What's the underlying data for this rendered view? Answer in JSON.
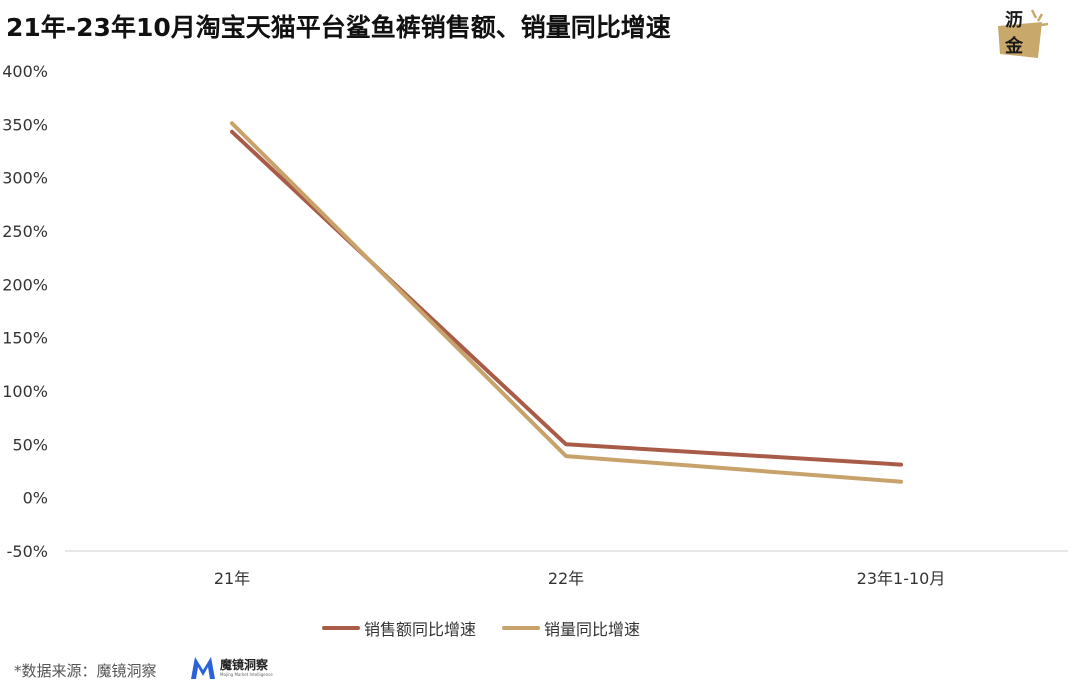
{
  "header": {
    "title": "21年-23年10月淘宝天猫平台鲨鱼裤销售额、销量同比增速"
  },
  "logo": {
    "char_top": "沥",
    "char_bottom": "金",
    "accent_color": "#c8a86b"
  },
  "chart_data": {
    "type": "line",
    "categories": [
      "21年",
      "22年",
      "23年1-10月"
    ],
    "series": [
      {
        "name": "销售额同比增速",
        "values": [
          343,
          50,
          31
        ],
        "color": "#a85c48"
      },
      {
        "name": "销量同比增速",
        "values": [
          351,
          39,
          15
        ],
        "color": "#c7a26b"
      }
    ],
    "yticks": [
      "400%",
      "350%",
      "300%",
      "250%",
      "200%",
      "150%",
      "100%",
      "50%",
      "0%",
      "-50%"
    ],
    "ylim": [
      -50,
      400
    ],
    "grid": false,
    "legend_position": "bottom"
  },
  "footer": {
    "source": "*数据来源：魔镜洞察",
    "brand_name": "魔镜洞察",
    "brand_sub": "Mojing Market Intelligence",
    "brand_color": "#2b62d9"
  }
}
